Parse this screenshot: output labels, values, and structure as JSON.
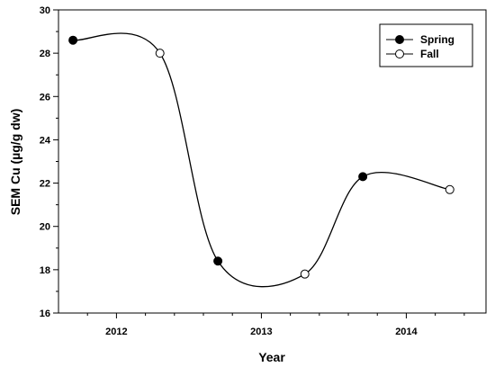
{
  "chart_data": {
    "type": "line",
    "xlabel": "Year",
    "ylabel": "SEM Cu (µg/g dw)",
    "xlim": [
      2011.6,
      2014.55
    ],
    "ylim": [
      16,
      30
    ],
    "xticks": [
      2012,
      2013,
      2014
    ],
    "xtick_labels": [
      "2012",
      "2013",
      "2014"
    ],
    "yticks": [
      16,
      18,
      20,
      22,
      24,
      26,
      28,
      30
    ],
    "ytick_labels": [
      "16",
      "18",
      "20",
      "22",
      "24",
      "26",
      "28",
      "30"
    ],
    "curve": "smooth spline through all points",
    "series": [
      {
        "name": "Spring",
        "marker": "filled-circle",
        "x": [
          2011.7,
          2012.7,
          2013.7
        ],
        "y": [
          28.6,
          18.4,
          22.3
        ]
      },
      {
        "name": "Fall",
        "marker": "open-circle",
        "x": [
          2012.3,
          2013.3,
          2014.3
        ],
        "y": [
          28.0,
          17.8,
          21.7
        ]
      }
    ],
    "legend_position": "top-right",
    "grid": false
  }
}
